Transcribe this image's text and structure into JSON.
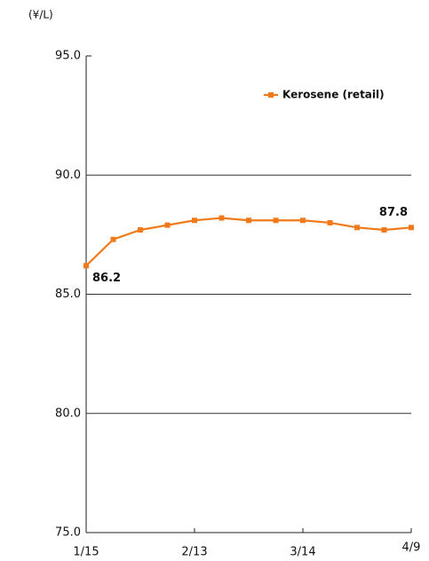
{
  "chart_data": {
    "type": "line",
    "unit_label": "(¥/L)",
    "categories": [
      "1/15",
      null,
      null,
      null,
      "2/13",
      null,
      null,
      null,
      "3/14",
      null,
      null,
      null,
      "4/9"
    ],
    "series": [
      {
        "name": "Kerosene (retail)",
        "color": "#f07a1a",
        "values": [
          86.2,
          87.3,
          87.7,
          87.9,
          88.1,
          88.2,
          88.1,
          88.1,
          88.1,
          88.0,
          87.8,
          87.7,
          87.8
        ]
      }
    ],
    "ylim": [
      75,
      95
    ],
    "yticks": [
      {
        "value": 75,
        "label": "75.0"
      },
      {
        "value": 80,
        "label": "80.0"
      },
      {
        "value": 85,
        "label": "85.0"
      },
      {
        "value": 90,
        "label": "90.0"
      },
      {
        "value": 95,
        "label": "95.0"
      }
    ],
    "grid": true,
    "legend": "top-right",
    "data_labels": "ends"
  }
}
